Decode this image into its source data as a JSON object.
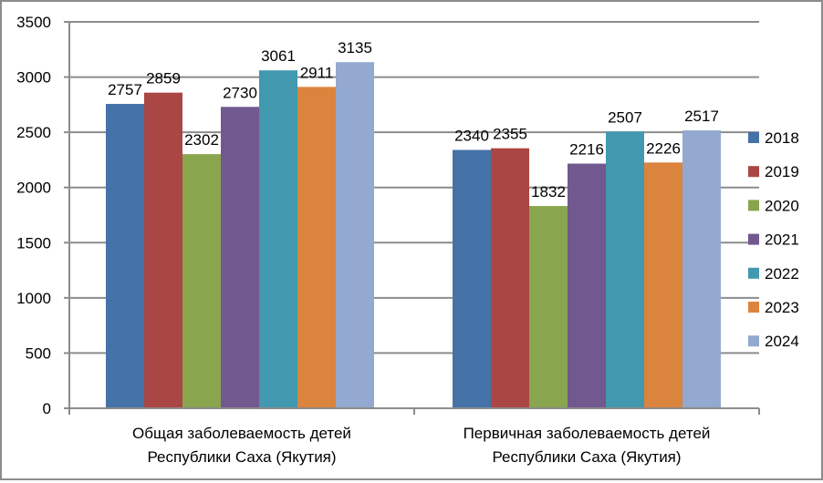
{
  "chart_data": {
    "type": "bar",
    "title": "",
    "xlabel": "",
    "ylabel": "",
    "ylim": [
      0,
      3500
    ],
    "yticks": [
      0,
      500,
      1000,
      1500,
      2000,
      2500,
      3000,
      3500
    ],
    "grid": true,
    "legend_position": "right",
    "categories": [
      "Общая заболеваемость детей Республики Саха (Якутия)",
      "Первичная заболеваемость детей Республики Саха (Якутия)"
    ],
    "category_lines": [
      [
        "Общая заболеваемость детей",
        "Республики Саха (Якутия)"
      ],
      [
        "Первичная заболеваемость детей",
        "Республики Саха (Якутия)"
      ]
    ],
    "series": [
      {
        "name": "2018",
        "color": "#4572A7",
        "values": [
          2757,
          2340
        ]
      },
      {
        "name": "2019",
        "color": "#AA4643",
        "values": [
          2859,
          2355
        ]
      },
      {
        "name": "2020",
        "color": "#89A54E",
        "values": [
          2302,
          1832
        ]
      },
      {
        "name": "2021",
        "color": "#71588F",
        "values": [
          2730,
          2216
        ]
      },
      {
        "name": "2022",
        "color": "#4198AF",
        "values": [
          3061,
          2507
        ]
      },
      {
        "name": "2023",
        "color": "#DB843D",
        "values": [
          2911,
          2226
        ]
      },
      {
        "name": "2024",
        "color": "#93A9CF",
        "values": [
          3135,
          2517
        ]
      }
    ]
  },
  "colors": {
    "gridline": "#8c8c8c",
    "axis": "#8c8c8c",
    "border": "#8c8c8c"
  }
}
